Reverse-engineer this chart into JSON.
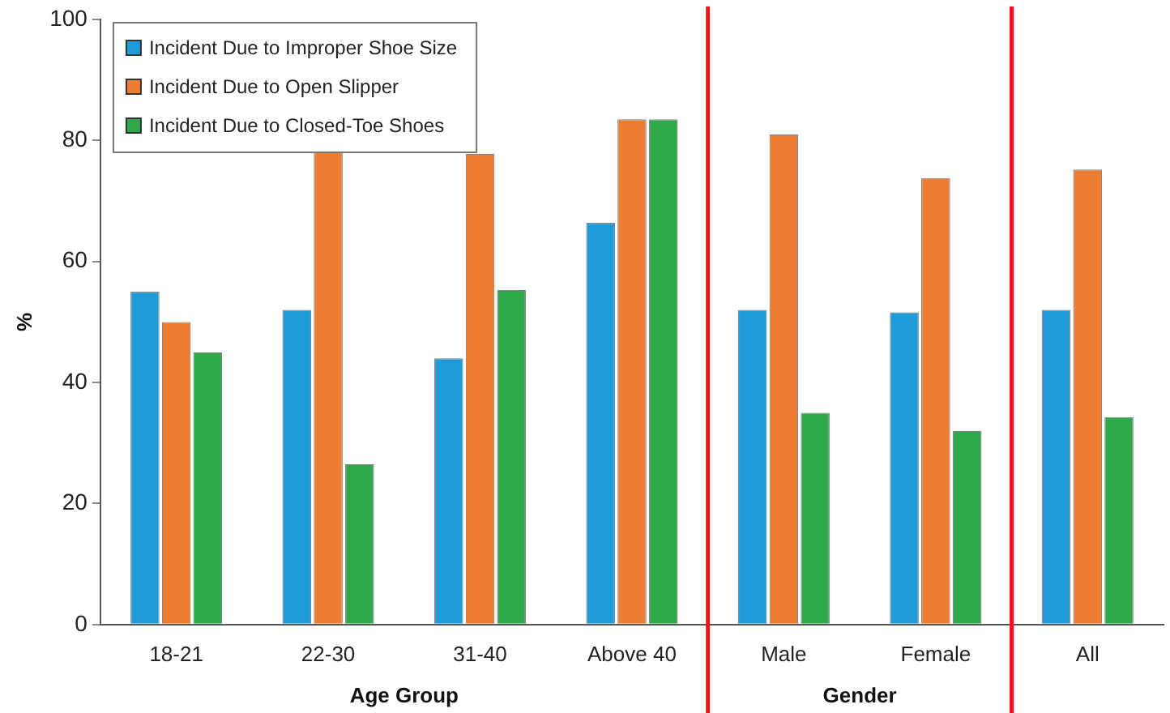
{
  "chart_data": {
    "type": "bar",
    "ylabel": "%",
    "categories": [
      "18-21",
      "22-30",
      "31-40",
      "Above 40",
      "Male",
      "Female",
      "All"
    ],
    "series": [
      {
        "name": "Incident Due to Improper Shoe Size",
        "color": "#1f9bd7",
        "values": [
          55,
          52,
          44,
          66.4,
          52,
          51.6,
          52
        ]
      },
      {
        "name": "Incident Due to Open Slipper",
        "color": "#ed7d31",
        "values": [
          50,
          78.6,
          77.8,
          83.5,
          81,
          73.8,
          75.2
        ]
      },
      {
        "name": "Incident Due to Closed-Toe Shoes",
        "color": "#2ea84a",
        "values": [
          45,
          26.5,
          55.3,
          83.5,
          35,
          32,
          34.3
        ]
      }
    ],
    "ylim": [
      0,
      100
    ],
    "yticks": [
      0,
      20,
      40,
      60,
      80,
      100
    ],
    "grid": false,
    "legend": "top left",
    "annotations": [
      "Age Group",
      "Gender"
    ]
  }
}
